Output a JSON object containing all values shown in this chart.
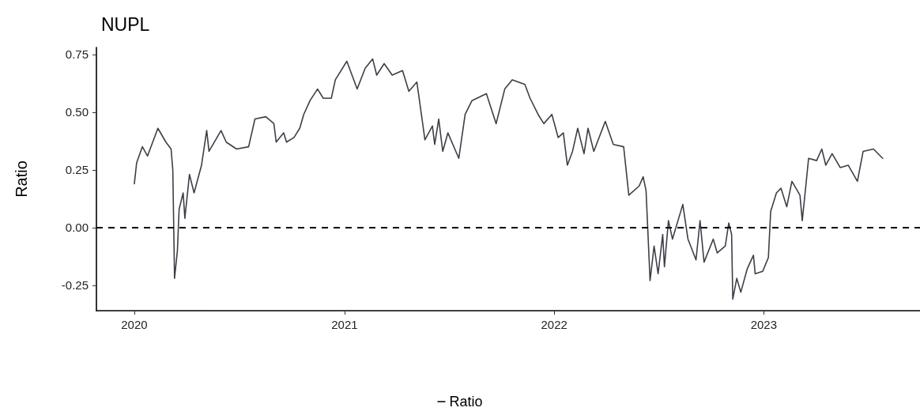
{
  "chart_data": {
    "type": "line",
    "title": "NUPL",
    "ylabel": "Ratio",
    "x": [
      "2020-01-01",
      "2020-01-05",
      "2020-01-15",
      "2020-01-24",
      "2020-02-11",
      "2020-02-25",
      "2020-03-05",
      "2020-03-08",
      "2020-03-11",
      "2020-03-16",
      "2020-03-19",
      "2020-03-26",
      "2020-03-29",
      "2020-04-06",
      "2020-04-14",
      "2020-04-27",
      "2020-05-06",
      "2020-05-10",
      "2020-05-31",
      "2020-06-09",
      "2020-06-27",
      "2020-07-18",
      "2020-07-29",
      "2020-08-17",
      "2020-08-31",
      "2020-09-04",
      "2020-09-17",
      "2020-09-22",
      "2020-10-05",
      "2020-10-15",
      "2020-10-22",
      "2020-11-02",
      "2020-11-15",
      "2020-11-25",
      "2020-12-09",
      "2020-12-16",
      "2021-01-05",
      "2021-01-23",
      "2021-02-06",
      "2021-02-19",
      "2021-02-26",
      "2021-03-11",
      "2021-03-25",
      "2021-04-12",
      "2021-04-23",
      "2021-05-07",
      "2021-05-21",
      "2021-06-03",
      "2021-06-07",
      "2021-06-14",
      "2021-06-21",
      "2021-06-30",
      "2021-07-19",
      "2021-07-30",
      "2021-08-11",
      "2021-09-05",
      "2021-09-22",
      "2021-09-26",
      "2021-10-07",
      "2021-10-20",
      "2021-11-11",
      "2021-11-20",
      "2021-12-04",
      "2021-12-14",
      "2021-12-28",
      "2022-01-08",
      "2022-01-17",
      "2022-01-24",
      "2022-02-02",
      "2022-02-11",
      "2022-02-22",
      "2022-03-01",
      "2022-03-11",
      "2022-03-31",
      "2022-04-14",
      "2022-05-02",
      "2022-05-11",
      "2022-05-29",
      "2022-06-05",
      "2022-06-10",
      "2022-06-17",
      "2022-06-24",
      "2022-07-01",
      "2022-07-09",
      "2022-07-12",
      "2022-07-19",
      "2022-07-26",
      "2022-08-13",
      "2022-08-22",
      "2022-09-05",
      "2022-09-12",
      "2022-09-19",
      "2022-10-05",
      "2022-10-12",
      "2022-10-26",
      "2022-11-01",
      "2022-11-06",
      "2022-11-08",
      "2022-11-15",
      "2022-11-22",
      "2022-12-03",
      "2022-12-14",
      "2022-12-17",
      "2022-12-30",
      "2023-01-09",
      "2023-01-13",
      "2023-01-23",
      "2023-01-31",
      "2023-02-10",
      "2023-02-19",
      "2023-03-05",
      "2023-03-09",
      "2023-03-16",
      "2023-03-20",
      "2023-04-03",
      "2023-04-12",
      "2023-04-19",
      "2023-04-30",
      "2023-05-14",
      "2023-05-28",
      "2023-06-13",
      "2023-06-23",
      "2023-07-11",
      "2023-07-27"
    ],
    "series": [
      {
        "name": "Ratio",
        "color": "#3d3f47",
        "values": [
          0.19,
          0.28,
          0.35,
          0.31,
          0.43,
          0.37,
          0.34,
          0.25,
          -0.22,
          -0.1,
          0.08,
          0.15,
          0.04,
          0.23,
          0.15,
          0.27,
          0.42,
          0.33,
          0.42,
          0.37,
          0.34,
          0.35,
          0.47,
          0.48,
          0.45,
          0.37,
          0.41,
          0.37,
          0.39,
          0.43,
          0.49,
          0.55,
          0.6,
          0.56,
          0.56,
          0.64,
          0.72,
          0.6,
          0.69,
          0.73,
          0.66,
          0.71,
          0.66,
          0.68,
          0.59,
          0.63,
          0.38,
          0.44,
          0.36,
          0.47,
          0.33,
          0.41,
          0.3,
          0.49,
          0.55,
          0.58,
          0.45,
          0.49,
          0.6,
          0.64,
          0.62,
          0.56,
          0.49,
          0.45,
          0.49,
          0.39,
          0.41,
          0.27,
          0.33,
          0.43,
          0.32,
          0.43,
          0.33,
          0.46,
          0.36,
          0.35,
          0.14,
          0.18,
          0.22,
          0.16,
          -0.23,
          -0.08,
          -0.2,
          -0.03,
          -0.17,
          0.03,
          -0.05,
          0.1,
          -0.05,
          -0.14,
          0.03,
          -0.15,
          -0.05,
          -0.11,
          -0.08,
          0.02,
          -0.03,
          -0.31,
          -0.22,
          -0.28,
          -0.18,
          -0.12,
          -0.2,
          -0.19,
          -0.13,
          0.07,
          0.15,
          0.17,
          0.09,
          0.2,
          0.14,
          0.03,
          0.2,
          0.3,
          0.29,
          0.34,
          0.27,
          0.32,
          0.26,
          0.27,
          0.2,
          0.33,
          0.34,
          0.3
        ]
      }
    ],
    "xlim": [
      "2019-10-27",
      "2023-09-30"
    ],
    "xticks": [
      {
        "value": "2020-01-01",
        "label": "2020"
      },
      {
        "value": "2021-01-01",
        "label": "2021"
      },
      {
        "value": "2022-01-01",
        "label": "2022"
      },
      {
        "value": "2023-01-01",
        "label": "2023"
      }
    ],
    "ylim": [
      -0.36,
      0.78
    ],
    "yticks": [
      {
        "value": -0.25,
        "label": "-0.25"
      },
      {
        "value": 0,
        "label": "0.00"
      },
      {
        "value": 0.25,
        "label": "0.25"
      },
      {
        "value": 0.5,
        "label": "0.50"
      },
      {
        "value": 0.75,
        "label": "0.75"
      }
    ],
    "ref_lines": [
      {
        "axis": "y",
        "value": 0,
        "color": "#000000",
        "line_style": "dashed"
      }
    ],
    "grid": false,
    "legend": "bottom",
    "marker": "none",
    "line_style": "solid"
  }
}
